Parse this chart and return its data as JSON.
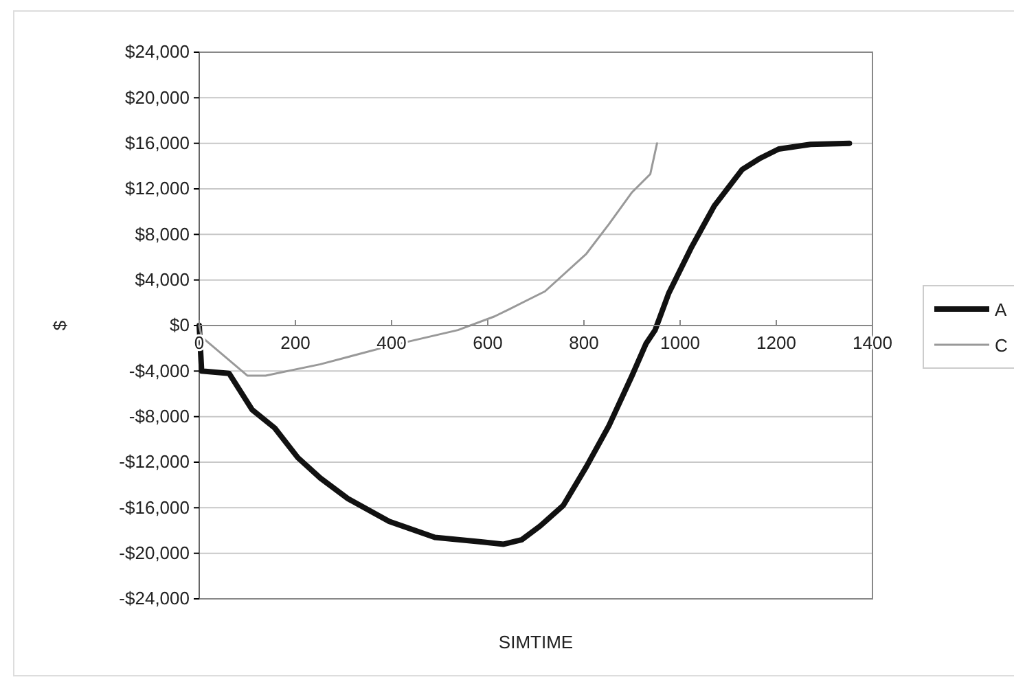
{
  "chart_data": {
    "type": "line",
    "xlabel": "SIMTIME",
    "ylabel": "$",
    "xlim": [
      0,
      1400
    ],
    "xticks": [
      0,
      200,
      400,
      600,
      800,
      1000,
      1200,
      1400
    ],
    "ylim": [
      -24000,
      24000
    ],
    "yticks": [
      {
        "value": -24000,
        "label": "-$24,000"
      },
      {
        "value": -20000,
        "label": "-$20,000"
      },
      {
        "value": -16000,
        "label": "-$16,000"
      },
      {
        "value": -12000,
        "label": "-$12,000"
      },
      {
        "value": -8000,
        "label": "-$8,000"
      },
      {
        "value": -4000,
        "label": "-$4,000"
      },
      {
        "value": 0,
        "label": "$0"
      },
      {
        "value": 4000,
        "label": "$4,000"
      },
      {
        "value": 8000,
        "label": "$8,000"
      },
      {
        "value": 12000,
        "label": "$12,000"
      },
      {
        "value": 16000,
        "label": "$16,000"
      },
      {
        "value": 20000,
        "label": "$20,000"
      },
      {
        "value": 24000,
        "label": "$24,000"
      }
    ],
    "grid": "y",
    "legend": "right",
    "marker": "none",
    "series": [
      {
        "name": "A",
        "color": "#111111",
        "x": [
          0,
          5,
          62,
          110,
          157,
          205,
          252,
          309,
          395,
          490,
          586,
          633,
          671,
          709,
          757,
          805,
          852,
          900,
          929,
          948,
          976,
          1024,
          1071,
          1129,
          1167,
          1205,
          1271,
          1352
        ],
        "values": [
          0,
          -4000,
          -4200,
          -7400,
          -9000,
          -11600,
          -13400,
          -15200,
          -17200,
          -18600,
          -19000,
          -19200,
          -18800,
          -17600,
          -15800,
          -12400,
          -8800,
          -4400,
          -1600,
          -400,
          2800,
          6900,
          10500,
          13700,
          14700,
          15500,
          15900,
          16000
        ]
      },
      {
        "name": "C",
        "color": "#999999",
        "x": [
          0,
          5,
          33,
          100,
          138,
          252,
          395,
          538,
          614,
          643,
          719,
          805,
          852,
          900,
          938,
          952
        ],
        "values": [
          0,
          -1000,
          -2000,
          -4400,
          -4400,
          -3400,
          -1800,
          -400,
          800,
          1400,
          3000,
          6300,
          8900,
          11700,
          13300,
          16000
        ]
      }
    ]
  }
}
